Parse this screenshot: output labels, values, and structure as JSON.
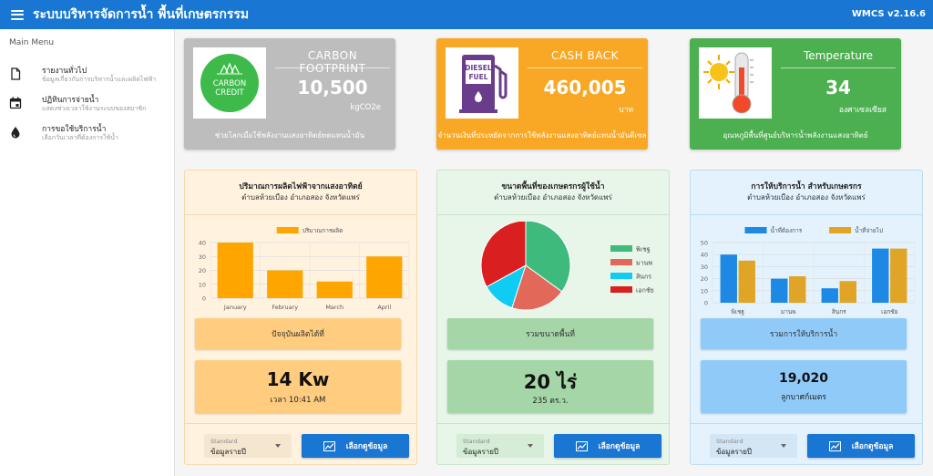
{
  "app": {
    "title": "ระบบบริหารจัดการน้ำ พื้นที่เกษตรกรรม",
    "version": "WMCS v2.16.6"
  },
  "sidebar": {
    "title": "Main Menu",
    "items": [
      {
        "label": "รายงานทั่วไป",
        "sub": "ข้อมูลเกี่ยวกับการบริหารน้ำและผลิตไฟฟ้า",
        "icon": "document-icon"
      },
      {
        "label": "ปฏิทินการจ่ายน้ำ",
        "sub": "แสดงช่วงเวลาใช้งานระบบของสมาชิก",
        "icon": "calendar-icon"
      },
      {
        "label": "การขอใช้บริการน้ำ",
        "sub": "เลือกวันเวลาที่ต้องการใช้น้ำ",
        "icon": "water-drop-icon"
      }
    ]
  },
  "cards": [
    {
      "title": "CARBON FOOTPRINT",
      "value": "10,500",
      "unit": "kgCO2e",
      "desc": "ช่วยโลกเมื่อใช้พลังงานแสงอาทิตย์ทดแทนน้ำมัน",
      "color": "#bdbdbd",
      "img_line1": "CARBON",
      "img_line2": "CREDIT",
      "icon": "carbon-credit-icon"
    },
    {
      "title": "CASH BACK",
      "value": "460,005",
      "unit": "บาท",
      "desc": "จำนวนเงินที่ประหยัดจากการใช้พลังงานแสงอาทิตย์แทนน้ำมันดีเซล",
      "color": "#f9a825",
      "img_line1": "DIESEL",
      "img_line2": "FUEL",
      "icon": "diesel-pump-icon"
    },
    {
      "title": "Temperature",
      "value": "34",
      "unit": "องศาเซลเซียส",
      "desc": "อุณหภูมิพื้นที่ศูนย์บริหารน้ำพลังงานแสงอาทิตย์",
      "color": "#4caf50",
      "icon": "thermometer-icon"
    }
  ],
  "panels": [
    {
      "title": "ปริมาณการผลิตไฟฟ้าจากแสงอาทิตย์",
      "subtitle": "ตำบลห้วยเบือง อำเภอสอง จังหวัดแพร่",
      "label": "ปัจจุบันผลิตได้ที่",
      "value": "14 Kw",
      "value_sub": "เวลา 10:41 AM",
      "select_caption": "Standard",
      "select_value": "ข้อมูลรายปี",
      "button": "เลือกดูข้อมูล"
    },
    {
      "title": "ขนาดพื้นที่ของเกษตรกรผู้ใช้น้ำ",
      "subtitle": "ตำบลห้วยเบือง อำเภอสอง จังหวัดแพร่",
      "label": "รวมขนาดพื้นที่",
      "value": "20 ไร่",
      "value_sub": "235 ตร.ว.",
      "select_caption": "Standard",
      "select_value": "ข้อมูลรายปี",
      "button": "เลือกดูข้อมูล"
    },
    {
      "title": "การให้บริการน้ำ สำหรับเกษตรกร",
      "subtitle": "ตำบลห้วยเบือง อำเภอสอง จังหวัดแพร่",
      "label": "รวมการให้บริการน้ำ",
      "value": "19,020",
      "value_sub": "ลูกบาศก์เมตร",
      "select_caption": "Standard",
      "select_value": "ข้อมูลรายปี",
      "button": "เลือกดูข้อมูล"
    }
  ],
  "chart_data": [
    {
      "type": "bar",
      "categories": [
        "January",
        "February",
        "March",
        "April"
      ],
      "series": [
        {
          "name": "ปริมาณการผลิต",
          "values": [
            40,
            20,
            12,
            30
          ],
          "color": "#ffa500"
        }
      ],
      "ylim": [
        0,
        40
      ],
      "yticks": [
        0,
        10,
        20,
        30,
        40
      ],
      "legend": "top",
      "grid": true
    },
    {
      "type": "pie",
      "categories": [
        "พิเชฐ",
        "มานพ",
        "สินกร",
        "เอกชัย"
      ],
      "values": [
        35,
        20,
        12,
        33
      ],
      "colors": [
        "#3dba7c",
        "#e2685a",
        "#11ccf2",
        "#d91f1f"
      ],
      "legend": "right"
    },
    {
      "type": "bar",
      "categories": [
        "พิเชฐ",
        "มานพ",
        "สินกร",
        "เอกชัย"
      ],
      "series": [
        {
          "name": "น้ำที่ต้องการ",
          "values": [
            40,
            20,
            12,
            45
          ],
          "color": "#1e88e5"
        },
        {
          "name": "น้ำที่จ่ายไป",
          "values": [
            35,
            22,
            18,
            45
          ],
          "color": "#e0a526"
        }
      ],
      "ylim": [
        0,
        50
      ],
      "yticks": [
        0,
        10,
        20,
        30,
        40,
        50
      ],
      "legend": "top",
      "grid": true
    }
  ]
}
